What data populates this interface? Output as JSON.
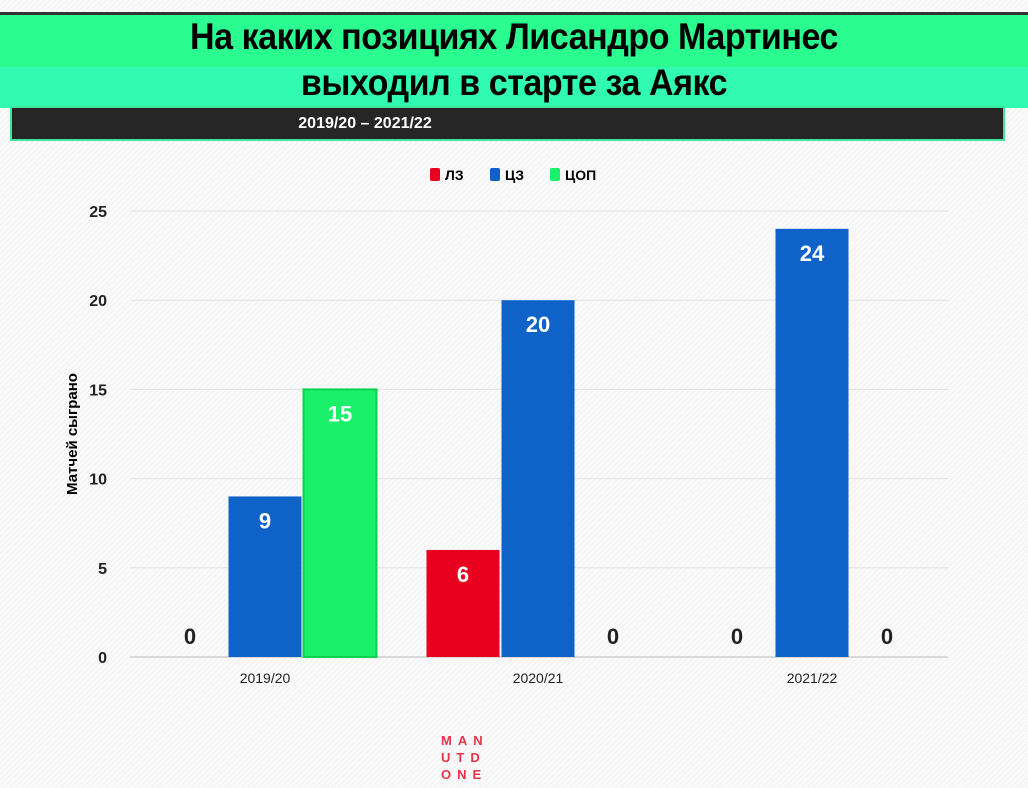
{
  "title_line1": "На каких позициях Лисандро Мартинес",
  "title_line2": "выходил в старте за Аякс",
  "subtitle": "2019/20 – 2021/22",
  "logo": [
    "MAN",
    "UTD",
    "ONE"
  ],
  "chart_data": {
    "type": "bar",
    "title": "На каких позициях Лисандро Мартинес выходил в старте за Аякс",
    "ylabel": "Матчей сыграно",
    "xlabel": "",
    "categories": [
      "2019/20",
      "2020/21",
      "2021/22"
    ],
    "series": [
      {
        "name": "ЛЗ",
        "color": "#e8001f",
        "values": [
          0,
          6,
          0
        ]
      },
      {
        "name": "ЦЗ",
        "color": "#0f62c8",
        "values": [
          9,
          20,
          24
        ]
      },
      {
        "name": "ЦОП",
        "color": "#1af06a",
        "values": [
          15,
          0,
          0
        ]
      }
    ],
    "ylim": [
      0,
      25
    ],
    "yticks": [
      0,
      5,
      10,
      15,
      20,
      25
    ],
    "grid": true,
    "legend": "top-center"
  }
}
